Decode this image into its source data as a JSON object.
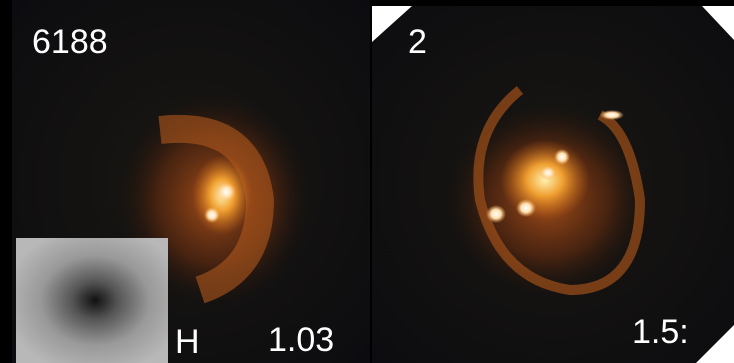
{
  "panels": [
    {
      "id_label": "6188",
      "band_label": "H",
      "value_label": "1.03"
    },
    {
      "id_label": "2",
      "value_label": "1.5:"
    }
  ]
}
